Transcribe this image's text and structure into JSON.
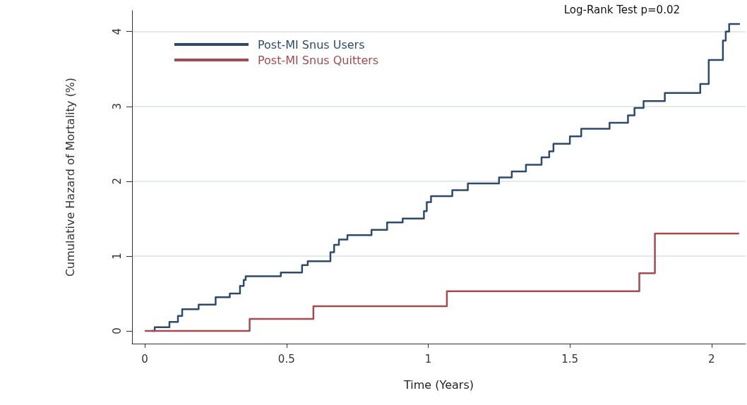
{
  "chart_data": {
    "type": "step",
    "xlabel": "Time (Years)",
    "ylabel": "Cumulative Hazard of Mortality (%)",
    "annotations": [
      "Log-Rank Test p=0.02"
    ],
    "xlim": [
      -0.045,
      2.12
    ],
    "xticks": [
      {
        "value": 0,
        "label": "0"
      },
      0.5,
      1,
      1.5,
      2
    ],
    "ylim": [
      -0.17,
      4.28
    ],
    "yticks": [
      0,
      1,
      2,
      3,
      4
    ],
    "grid": "y",
    "legend": "top left",
    "marker": "none",
    "line_style": "solid",
    "series": [
      {
        "name": "Post-MI Snus Users",
        "color": "#2e4a6b",
        "x": [
          0.025,
          0.035,
          0.087,
          0.117,
          0.132,
          0.19,
          0.25,
          0.3,
          0.336,
          0.349,
          0.356,
          0.48,
          0.555,
          0.575,
          0.655,
          0.668,
          0.685,
          0.715,
          0.8,
          0.855,
          0.91,
          0.985,
          0.995,
          1.01,
          1.085,
          1.14,
          1.25,
          1.295,
          1.345,
          1.4,
          1.427,
          1.442,
          1.5,
          1.54,
          1.64,
          1.705,
          1.728,
          1.76,
          1.835,
          1.96,
          1.99,
          2.04,
          2.05,
          2.062,
          2.1
        ],
        "values": [
          0,
          0.05,
          0.12,
          0.2,
          0.29,
          0.35,
          0.45,
          0.5,
          0.6,
          0.68,
          0.73,
          0.78,
          0.88,
          0.93,
          1.05,
          1.15,
          1.22,
          1.28,
          1.35,
          1.45,
          1.5,
          1.6,
          1.72,
          1.8,
          1.88,
          1.97,
          2.05,
          2.13,
          2.22,
          2.32,
          2.4,
          2.5,
          2.6,
          2.7,
          2.78,
          2.88,
          2.98,
          3.07,
          3.18,
          3.3,
          3.62,
          3.88,
          4.0,
          4.1,
          4.1
        ]
      },
      {
        "name": "Post-MI Snus Quitters",
        "color": "#a34a52",
        "x": [
          0,
          0.37,
          0.595,
          1.066,
          1.745,
          1.8,
          2.097
        ],
        "values": [
          0,
          0.16,
          0.33,
          0.53,
          0.77,
          1.3,
          1.3
        ]
      }
    ]
  }
}
